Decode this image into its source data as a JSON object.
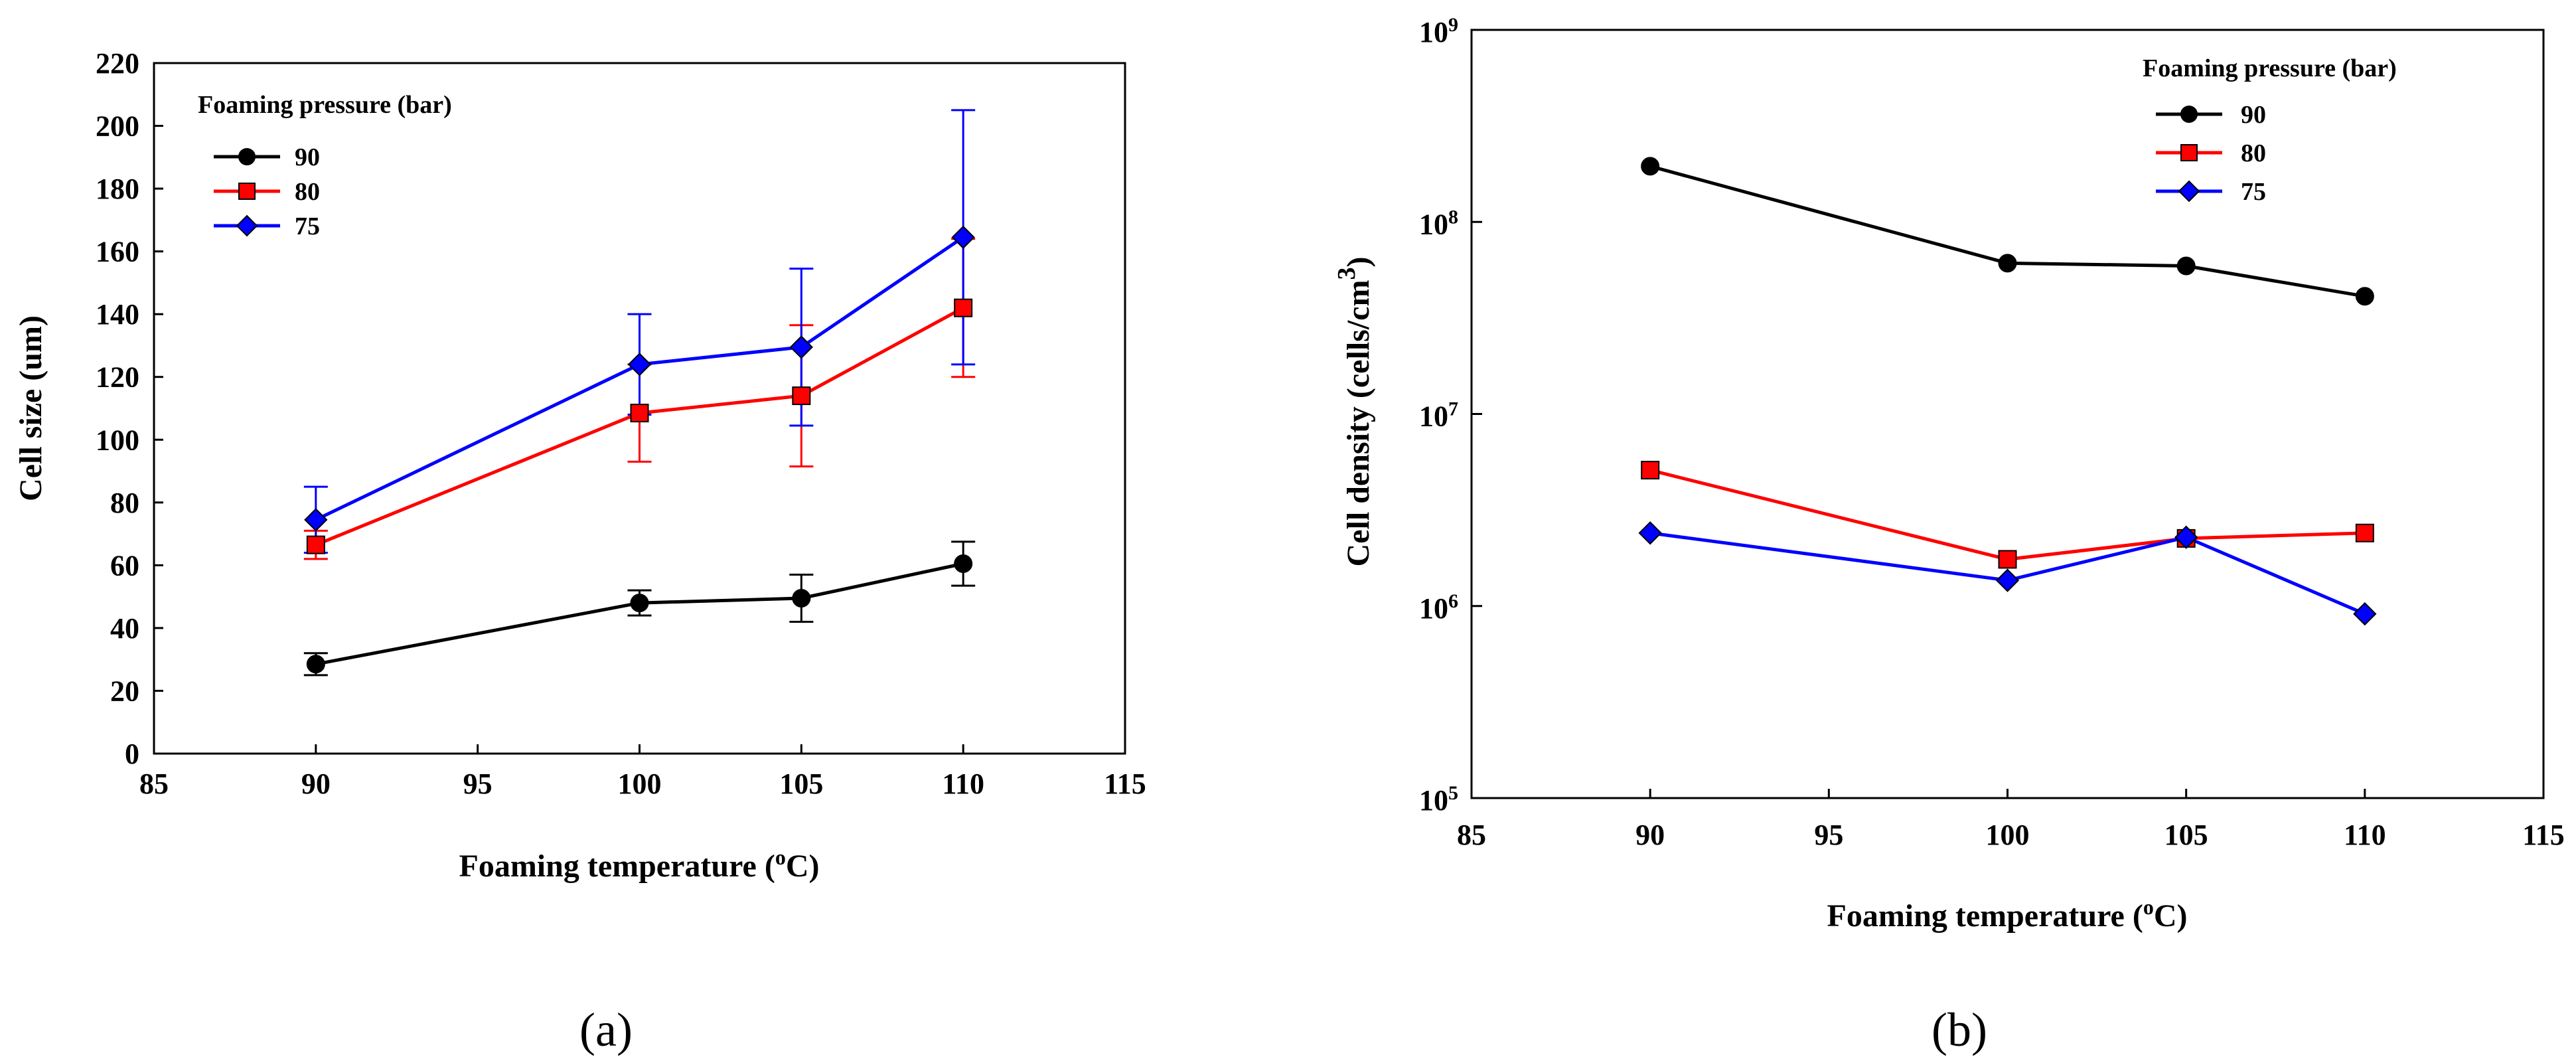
{
  "chart_data": [
    {
      "type": "line",
      "panel_label": "(a)",
      "xlabel_prefix": "Foaming temperature (",
      "xlabel_sup": "o",
      "xlabel_suffix": "C)",
      "ylabel": "Cell size (um)",
      "xlim": [
        85,
        115
      ],
      "ylim": [
        0,
        220
      ],
      "yscale": "linear",
      "x_ticks": [
        85,
        90,
        95,
        100,
        105,
        110,
        115
      ],
      "y_ticks": [
        0,
        20,
        40,
        60,
        80,
        100,
        120,
        140,
        160,
        180,
        200,
        220
      ],
      "legend_title": "Foaming pressure (bar)",
      "legend_position": "top-left",
      "series": [
        {
          "name": "90",
          "color": "#000000",
          "marker": "circle",
          "x": [
            90,
            100,
            105,
            110
          ],
          "y": [
            28.5,
            48,
            49.5,
            60.5
          ],
          "err": [
            3.5,
            4,
            7.5,
            7
          ]
        },
        {
          "name": "80",
          "color": "#ff0000",
          "marker": "square",
          "x": [
            90,
            100,
            105,
            110
          ],
          "y": [
            66.5,
            108.5,
            114,
            142
          ],
          "err": [
            4.5,
            15.5,
            22.5,
            22
          ]
        },
        {
          "name": "75",
          "color": "#0000ff",
          "marker": "diamond",
          "x": [
            90,
            100,
            105,
            110
          ],
          "y": [
            74.5,
            124,
            129.5,
            164.5
          ],
          "err": [
            10.5,
            16,
            25,
            40.5
          ]
        }
      ]
    },
    {
      "type": "line",
      "panel_label": "(b)",
      "xlabel_prefix": "Foaming temperature (",
      "xlabel_sup": "o",
      "xlabel_suffix": "C)",
      "ylabel_prefix": "Cell density (cells/cm",
      "ylabel_sup": "3",
      "ylabel_suffix": ")",
      "xlim": [
        85,
        115
      ],
      "ylim": [
        100000,
        1000000000
      ],
      "yscale": "log",
      "x_ticks": [
        85,
        90,
        95,
        100,
        105,
        110,
        115
      ],
      "y_ticks": [
        {
          "value": 100000,
          "base": "10",
          "exp": "5"
        },
        {
          "value": 1000000,
          "base": "10",
          "exp": "6"
        },
        {
          "value": 10000000,
          "base": "10",
          "exp": "7"
        },
        {
          "value": 100000000,
          "base": "10",
          "exp": "8"
        },
        {
          "value": 1000000000,
          "base": "10",
          "exp": "9"
        }
      ],
      "legend_title": "Foaming pressure (bar)",
      "legend_position": "top-right",
      "series": [
        {
          "name": "90",
          "color": "#000000",
          "marker": "circle",
          "x": [
            90,
            100,
            105,
            110
          ],
          "y": [
            195000000,
            61000000,
            59000000,
            41000000
          ]
        },
        {
          "name": "80",
          "color": "#ff0000",
          "marker": "square",
          "x": [
            90,
            100,
            105,
            110
          ],
          "y": [
            5100000,
            1750000,
            2250000,
            2400000
          ]
        },
        {
          "name": "75",
          "color": "#0000ff",
          "marker": "diamond",
          "x": [
            90,
            100,
            105,
            110
          ],
          "y": [
            2400000,
            1360000,
            2280000,
            910000
          ]
        }
      ]
    }
  ]
}
